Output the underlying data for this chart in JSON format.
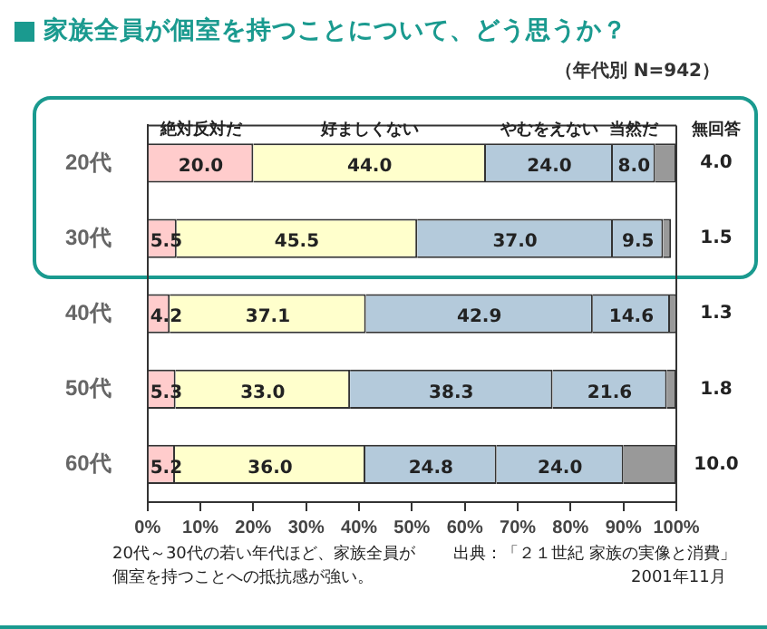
{
  "chart_data": {
    "type": "bar",
    "orientation": "horizontal",
    "stacked": true,
    "title": "家族全員が個室を持つことについて、どう思うか？",
    "subtitle": "（年代別 N=942）",
    "categories": [
      "20代",
      "30代",
      "40代",
      "50代",
      "60代"
    ],
    "series": [
      {
        "name": "絶対反対だ",
        "color": "#ffcccc",
        "values": [
          20.0,
          5.5,
          4.2,
          5.3,
          5.2
        ],
        "value_labels": [
          "20.0",
          "5.5",
          "4.2",
          "5.3",
          "5.2"
        ]
      },
      {
        "name": "好ましくない",
        "color": "#ffffcc",
        "values": [
          44.0,
          45.5,
          37.1,
          33.0,
          36.0
        ],
        "value_labels": [
          "44.0",
          "45.5",
          "37.1",
          "33.0",
          "36.0"
        ]
      },
      {
        "name": "やむをえない",
        "color": "#b4cadb",
        "values": [
          24.0,
          37.0,
          42.9,
          38.3,
          24.8
        ],
        "value_labels": [
          "24.0",
          "37.0",
          "42.9",
          "38.3",
          "24.8"
        ]
      },
      {
        "name": "当然だ",
        "color": "#b4cadb",
        "values": [
          8.0,
          9.5,
          14.6,
          21.6,
          24.0
        ],
        "value_labels": [
          "8.0",
          "9.5",
          "14.6",
          "21.6",
          "24.0"
        ]
      },
      {
        "name": "無回答",
        "color": "#999999",
        "values": [
          4.0,
          1.5,
          1.3,
          1.8,
          10.0
        ],
        "value_labels": [
          "4.0",
          "1.5",
          "1.3",
          "1.8",
          "10.0"
        ]
      }
    ],
    "xlim": [
      0,
      100
    ],
    "xticks": [
      {
        "value": 0,
        "label": "0%"
      },
      {
        "value": 10,
        "label": "10%"
      },
      {
        "value": 20,
        "label": "20%"
      },
      {
        "value": 30,
        "label": "30%"
      },
      {
        "value": 40,
        "label": "40%"
      },
      {
        "value": 50,
        "label": "50%"
      },
      {
        "value": 60,
        "label": "60%"
      },
      {
        "value": 70,
        "label": "70%"
      },
      {
        "value": 80,
        "label": "80%"
      },
      {
        "value": 90,
        "label": "90%"
      },
      {
        "value": 100,
        "label": "100%"
      }
    ],
    "legend": "top",
    "grid": false,
    "annotations": [
      "20代～30代の若い年代ほど、家族全員が個室を持つことへの抵抗感が強い。",
      "出典：「２１世紀 家族の実像と消費」",
      "2001年11月"
    ]
  }
}
